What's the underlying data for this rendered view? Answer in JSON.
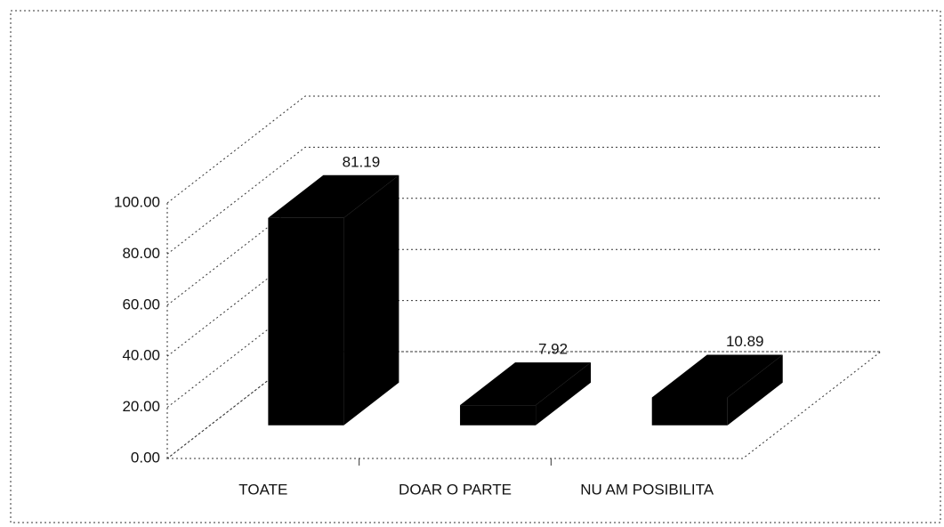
{
  "chart_data": {
    "type": "bar3d",
    "categories": [
      "TOATE",
      "DOAR O PARTE",
      "NU AM POSIBILITA"
    ],
    "values": [
      81.19,
      7.92,
      10.89
    ],
    "color": "#000000",
    "ylim": [
      0,
      100
    ],
    "yticks": [
      {
        "value": 0,
        "label": "0.00"
      },
      {
        "value": 20,
        "label": "20.00"
      },
      {
        "value": 40,
        "label": "40.00"
      },
      {
        "value": 60,
        "label": "60.00"
      },
      {
        "value": 80,
        "label": "80.00"
      },
      {
        "value": 100,
        "label": "100.00"
      }
    ],
    "grid": true
  }
}
